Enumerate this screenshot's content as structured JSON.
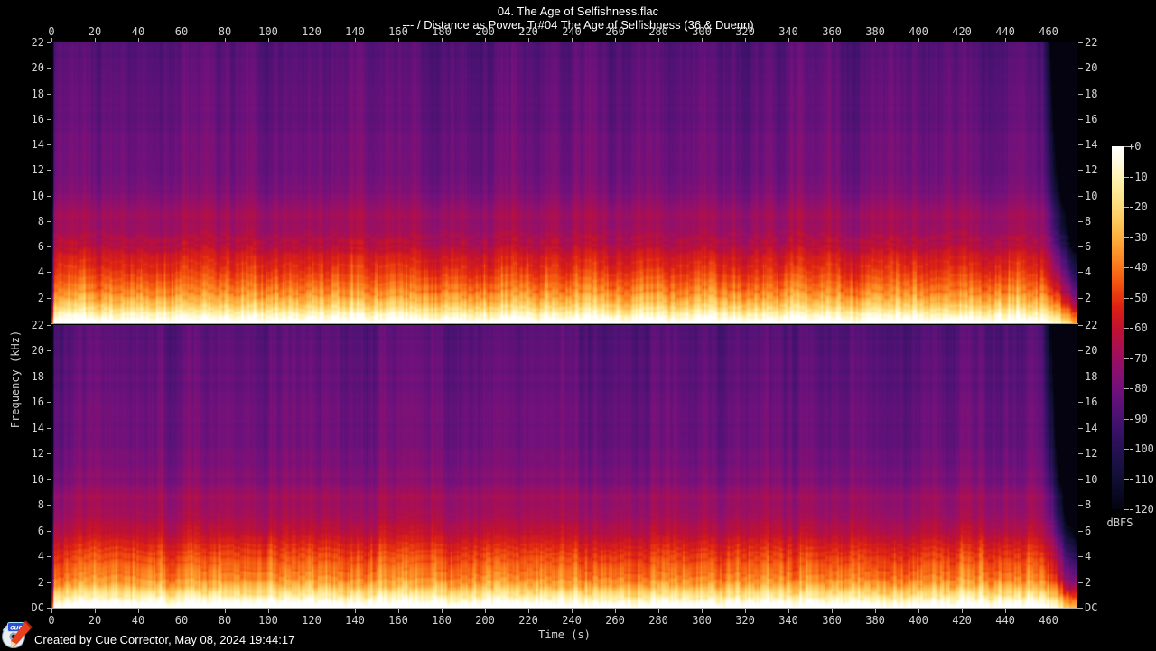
{
  "header": {
    "title": "04. The Age of Selfishness.flac",
    "subtitle": "--- / Distance as Power, Tr#04 The Age of Selfishness (36 & Duenn)"
  },
  "footer": {
    "credit": "Created by Cue Corrector, May 08, 2024 19:44:17",
    "logo_text": "cue",
    "time_axis_label": "Time (s)"
  },
  "chart_data": {
    "type": "heatmap",
    "subtype": "audio-spectrogram",
    "title": "04. The Age of Selfishness.flac",
    "subtitle": "--- / Distance as Power, Tr#04 The Age of Selfishness (36 & Duenn)",
    "xlabel": "Time (s)",
    "ylabel": "Frequency (kHz)",
    "channels": [
      "left",
      "right"
    ],
    "x_ticks": [
      0,
      20,
      40,
      60,
      80,
      100,
      120,
      140,
      160,
      180,
      200,
      220,
      240,
      260,
      280,
      300,
      320,
      340,
      360,
      380,
      400,
      420,
      440,
      460
    ],
    "x_range_s": [
      0,
      473.3
    ],
    "y_tick_labels": [
      "22",
      "20",
      "18",
      "16",
      "14",
      "12",
      "10",
      "8",
      "6",
      "4",
      "2",
      "DC"
    ],
    "y_tick_khz": [
      22,
      20,
      18,
      16,
      14,
      12,
      10,
      8,
      6,
      4,
      2,
      0
    ],
    "y_range_khz": [
      0,
      22
    ],
    "grid": false,
    "legend_position": "right",
    "colorbar": {
      "label": "dBFS",
      "tick_labels": [
        "+0",
        "-10",
        "-20",
        "-30",
        "-40",
        "-50",
        "-60",
        "-70",
        "-80",
        "-90",
        "-100",
        "-110",
        "-120"
      ],
      "range_db": [
        0,
        -120
      ],
      "stops": [
        [
          0,
          "#ffffff"
        ],
        [
          -5,
          "#fffbe0"
        ],
        [
          -11,
          "#fff3ae"
        ],
        [
          -18,
          "#fee185"
        ],
        [
          -25,
          "#fdc75a"
        ],
        [
          -32,
          "#fda637"
        ],
        [
          -39,
          "#fb7d1d"
        ],
        [
          -46,
          "#f24f0e"
        ],
        [
          -53,
          "#dd2313"
        ],
        [
          -60,
          "#c2122f"
        ],
        [
          -67,
          "#a80f55"
        ],
        [
          -74,
          "#8d106f"
        ],
        [
          -81,
          "#6f117c"
        ],
        [
          -88,
          "#521276"
        ],
        [
          -95,
          "#371265"
        ],
        [
          -102,
          "#22114f"
        ],
        [
          -109,
          "#131037"
        ],
        [
          -115,
          "#0a0a23"
        ],
        [
          -120,
          "#04030f"
        ]
      ]
    },
    "audio": {
      "duration_s": 473.3,
      "signal_start_s": 1.2,
      "signal_end_s": 457,
      "transients_s": [
        437.5,
        446
      ],
      "spectral_profile_khz_db": [
        [
          0,
          -3
        ],
        [
          0.25,
          -7
        ],
        [
          0.6,
          -13
        ],
        [
          1.0,
          -22
        ],
        [
          1.6,
          -32
        ],
        [
          2.4,
          -40
        ],
        [
          3.2,
          -45
        ],
        [
          4.2,
          -50
        ],
        [
          5.2,
          -56
        ],
        [
          6.0,
          -62
        ],
        [
          7.0,
          -68
        ],
        [
          8.0,
          -71
        ],
        [
          8.6,
          -69
        ],
        [
          9.5,
          -75
        ],
        [
          11,
          -79
        ],
        [
          13,
          -81
        ],
        [
          16,
          -83
        ],
        [
          19,
          -85
        ],
        [
          22,
          -87
        ]
      ]
    }
  }
}
